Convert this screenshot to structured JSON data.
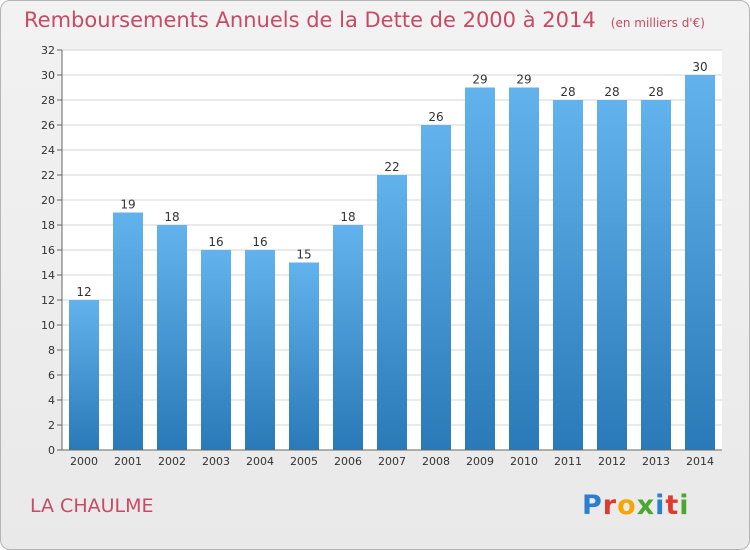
{
  "header": {
    "title": "Remboursements Annuels de la Dette de 2000 à 2014",
    "unit": "(en milliers d'€)"
  },
  "footer": {
    "commune": "LA CHAULME",
    "logo": "Proxiti",
    "logo_letter_colors": [
      "#2a7fd0",
      "#e03a2f",
      "#f7a600",
      "#4aa82f",
      "#2a7fd0",
      "#e03a2f",
      "#4aa82f"
    ]
  },
  "chart_data": {
    "type": "bar",
    "title": "Remboursements Annuels de la Dette de 2000 à 2014",
    "subtitle": "(en milliers d'€)",
    "xlabel": "",
    "ylabel": "",
    "categories": [
      "2000",
      "2001",
      "2002",
      "2003",
      "2004",
      "2005",
      "2006",
      "2007",
      "2008",
      "2009",
      "2010",
      "2011",
      "2012",
      "2013",
      "2014"
    ],
    "values": [
      12,
      19,
      18,
      16,
      16,
      15,
      18,
      22,
      26,
      29,
      29,
      28,
      28,
      28,
      30
    ],
    "ylim": [
      0,
      32
    ],
    "yticks": [
      0,
      2,
      4,
      6,
      8,
      10,
      12,
      14,
      16,
      18,
      20,
      22,
      24,
      26,
      28,
      30,
      32
    ],
    "grid": true,
    "bar_color_top": "#62b3ed",
    "bar_color_bottom": "#2a79b8",
    "grid_color": "#d4d4d4"
  }
}
